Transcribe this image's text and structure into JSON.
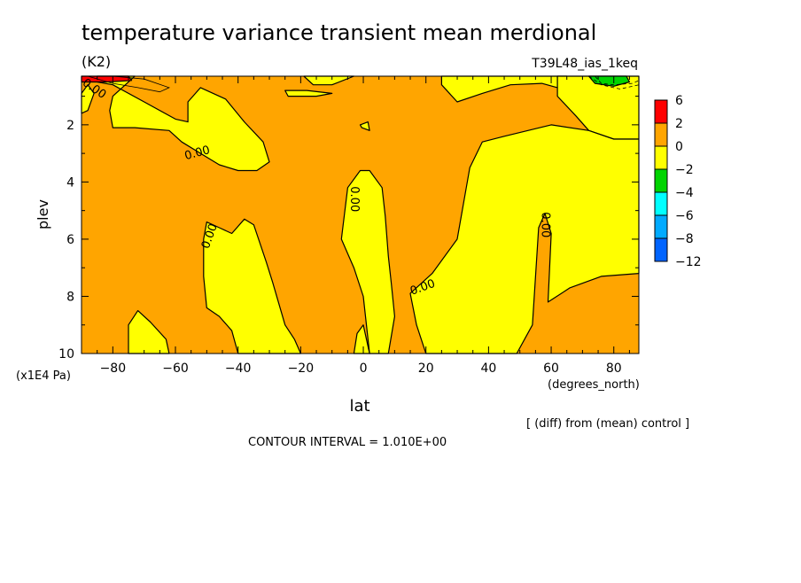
{
  "chart_data": {
    "type": "contour",
    "title": "temperature variance transient mean merdional",
    "units": "(K2)",
    "run_label": "T39L48_ias_1keq",
    "xlabel": "lat",
    "x_units": "(degrees_north)",
    "ylabel": "plev",
    "y_units": "(x1E4 Pa)",
    "xlim": [
      -90,
      88
    ],
    "ylim": [
      0.3,
      10
    ],
    "y_inverted": true,
    "x_ticks": [
      -80,
      -60,
      -40,
      -20,
      0,
      20,
      40,
      60,
      80
    ],
    "x_tick_labels": [
      "−80",
      "−60",
      "−40",
      "−20",
      "0",
      "20",
      "40",
      "60",
      "80"
    ],
    "y_ticks": [
      2,
      4,
      6,
      8,
      10
    ],
    "y_tick_labels": [
      "2",
      "4",
      "6",
      "8",
      "10"
    ],
    "legend": {
      "placement": "right",
      "levels": [
        "6",
        "2",
        "0",
        "−2",
        "−4",
        "−6",
        "−8",
        "−12"
      ],
      "colors": [
        "#ff0000",
        "#ffa500",
        "#ffff00",
        "#00d400",
        "#00ffff",
        "#00aaff",
        "#0064ff"
      ]
    },
    "background_color": "#ffa500",
    "contour_label": "0.00",
    "regions": [
      {
        "name": "yellow-upper-left",
        "level": "0 to -2",
        "color": "#ffff00",
        "points": [
          [
            -85,
            0.3
          ],
          [
            -73,
            0.3
          ],
          [
            -76,
            0.6
          ],
          [
            -80,
            1.0
          ],
          [
            -81,
            1.5
          ],
          [
            -80,
            2.1
          ],
          [
            -73,
            2.1
          ],
          [
            -62,
            2.2
          ],
          [
            -58,
            2.6
          ],
          [
            -52,
            3.0
          ],
          [
            -46,
            3.4
          ],
          [
            -40,
            3.6
          ],
          [
            -34,
            3.6
          ],
          [
            -30,
            3.3
          ],
          [
            -32,
            2.6
          ],
          [
            -38,
            1.9
          ],
          [
            -44,
            1.1
          ],
          [
            -52,
            0.7
          ],
          [
            -56,
            1.2
          ],
          [
            -56,
            1.9
          ],
          [
            -60,
            1.8
          ],
          [
            -70,
            1.2
          ],
          [
            -80,
            0.6
          ],
          [
            -85,
            0.5
          ]
        ]
      },
      {
        "name": "yellow-upper-mid",
        "level": "0 to -2",
        "color": "#ffff00",
        "points": [
          [
            -19,
            0.3
          ],
          [
            -3,
            0.3
          ],
          [
            -10,
            0.6
          ],
          [
            -16,
            0.6
          ]
        ]
      },
      {
        "name": "yellow-small-center",
        "level": "0 to -2",
        "color": "#ffff00",
        "points": [
          [
            -1,
            2.0
          ],
          [
            1.5,
            1.9
          ],
          [
            2,
            2.2
          ],
          [
            -0.5,
            2.1
          ]
        ]
      },
      {
        "name": "yellow-small-midlat",
        "level": "0 to -2",
        "color": "#ffff00",
        "points": [
          [
            -25,
            0.8
          ],
          [
            -18,
            0.8
          ],
          [
            -10,
            0.9
          ],
          [
            -15,
            1.0
          ],
          [
            -24,
            1.0
          ]
        ]
      },
      {
        "name": "yellow-upper-right",
        "level": "0 to -2",
        "color": "#ffff00",
        "points": [
          [
            25,
            0.3
          ],
          [
            65,
            0.3
          ],
          [
            62,
            0.7
          ],
          [
            57,
            0.55
          ],
          [
            47,
            0.6
          ],
          [
            38,
            0.9
          ],
          [
            30,
            1.2
          ],
          [
            25,
            0.6
          ]
        ]
      },
      {
        "name": "yellow-top-right-corner",
        "level": "0 to -2",
        "color": "#ffff00",
        "points": [
          [
            62,
            0.3
          ],
          [
            88,
            0.3
          ],
          [
            88,
            2.5
          ],
          [
            80,
            2.5
          ],
          [
            72,
            2.2
          ],
          [
            68,
            1.7
          ],
          [
            62,
            1.0
          ]
        ]
      },
      {
        "name": "yellow-right-large",
        "level": "0 to -2",
        "color": "#ffff00",
        "points": [
          [
            88,
            2.5
          ],
          [
            88,
            7.2
          ],
          [
            76,
            7.3
          ],
          [
            66,
            7.7
          ],
          [
            59,
            8.2
          ],
          [
            60,
            5.8
          ],
          [
            58,
            5.1
          ],
          [
            56,
            5.6
          ],
          [
            54,
            9.0
          ],
          [
            49,
            10
          ],
          [
            20,
            10
          ],
          [
            17,
            9.0
          ],
          [
            15,
            7.9
          ],
          [
            22,
            7.2
          ],
          [
            30,
            6.0
          ],
          [
            34,
            3.5
          ],
          [
            38,
            2.6
          ],
          [
            45,
            2.4
          ],
          [
            60,
            2.0
          ],
          [
            72,
            2.2
          ],
          [
            80,
            2.5
          ]
        ]
      },
      {
        "name": "yellow-center-column",
        "level": "0 to -2",
        "color": "#ffff00",
        "points": [
          [
            -7,
            6.0
          ],
          [
            -5,
            4.2
          ],
          [
            -1,
            3.6
          ],
          [
            2,
            3.6
          ],
          [
            6,
            4.2
          ],
          [
            7,
            5.2
          ],
          [
            8,
            6.6
          ],
          [
            9,
            7.6
          ],
          [
            10,
            8.7
          ],
          [
            8,
            10
          ],
          [
            2,
            10
          ],
          [
            0,
            8.0
          ],
          [
            -3,
            7.0
          ]
        ]
      },
      {
        "name": "yellow-mid-left",
        "level": "0 to -2",
        "color": "#ffff00",
        "points": [
          [
            -51,
            6.0
          ],
          [
            -50,
            5.4
          ],
          [
            -46,
            5.6
          ],
          [
            -42,
            5.8
          ],
          [
            -38,
            5.3
          ],
          [
            -35,
            5.5
          ],
          [
            -31,
            6.8
          ],
          [
            -29,
            7.5
          ],
          [
            -25,
            9.0
          ],
          [
            -22,
            9.5
          ],
          [
            -20,
            10
          ],
          [
            -40,
            10
          ],
          [
            -42,
            9.2
          ],
          [
            -46,
            8.7
          ],
          [
            -50,
            8.4
          ],
          [
            -51,
            7.3
          ]
        ]
      },
      {
        "name": "yellow-bottom-left",
        "level": "0 to -2",
        "color": "#ffff00",
        "points": [
          [
            -75,
            10
          ],
          [
            -75,
            9.0
          ],
          [
            -72,
            8.5
          ],
          [
            -68,
            8.9
          ],
          [
            -63,
            9.5
          ],
          [
            -62,
            10
          ]
        ]
      },
      {
        "name": "yellow-bottom-center",
        "level": "0 to -2",
        "color": "#ffff00",
        "points": [
          [
            -3,
            10
          ],
          [
            -2,
            9.3
          ],
          [
            0,
            9.0
          ],
          [
            2,
            10
          ]
        ]
      },
      {
        "name": "yellow-left-edge",
        "level": "0 to -2",
        "color": "#ffff00",
        "points": [
          [
            -90,
            0.9
          ],
          [
            -88,
            0.6
          ],
          [
            -86,
            0.9
          ],
          [
            -88,
            1.5
          ],
          [
            -90,
            1.6
          ]
        ]
      },
      {
        "name": "red-top-left",
        "level": "2 to 6",
        "color": "#ff0000",
        "points": [
          [
            -90,
            0.3
          ],
          [
            -75,
            0.3
          ],
          [
            -74,
            0.45
          ],
          [
            -82,
            0.5
          ],
          [
            -90,
            0.5
          ]
        ]
      },
      {
        "name": "green-top-right",
        "level": "-2 to -4",
        "color": "#00d400",
        "points": [
          [
            72,
            0.3
          ],
          [
            84,
            0.3
          ],
          [
            85,
            0.5
          ],
          [
            80,
            0.65
          ],
          [
            74,
            0.55
          ]
        ]
      }
    ],
    "extra_lines": [
      {
        "name": "thin-contour-upper-left",
        "points": [
          [
            -88,
            0.3
          ],
          [
            -80,
            0.55
          ],
          [
            -72,
            0.7
          ],
          [
            -65,
            0.85
          ],
          [
            -62,
            0.7
          ],
          [
            -70,
            0.4
          ],
          [
            -80,
            0.3
          ]
        ]
      },
      {
        "name": "dashed-contour-top-right",
        "dashed": true,
        "points": [
          [
            74,
            0.3
          ],
          [
            76,
            0.55
          ],
          [
            80,
            0.6
          ],
          [
            86,
            0.55
          ],
          [
            88,
            0.45
          ]
        ]
      },
      {
        "name": "dashed-contour-top-right-2",
        "dashed": true,
        "points": [
          [
            72,
            0.3
          ],
          [
            76,
            0.6
          ],
          [
            82,
            0.75
          ],
          [
            88,
            0.6
          ]
        ]
      }
    ],
    "contour_labels": [
      {
        "text": "0.00",
        "x": -86,
        "y": 0.75,
        "angle": 35
      },
      {
        "text": "0.00",
        "x": -53,
        "y": 3.0,
        "angle": -15
      },
      {
        "text": "0.00",
        "x": -49,
        "y": 5.9,
        "angle": -70
      },
      {
        "text": "0.00",
        "x": -3,
        "y": 4.6,
        "angle": 90
      },
      {
        "text": "0.00",
        "x": 19,
        "y": 7.7,
        "angle": -20
      },
      {
        "text": "0.00",
        "x": 58,
        "y": 5.5,
        "angle": 90
      }
    ]
  },
  "footnote": "[ (diff) from (mean) control ]",
  "contour_interval_text": "CONTOUR INTERVAL = 1.010E+00"
}
